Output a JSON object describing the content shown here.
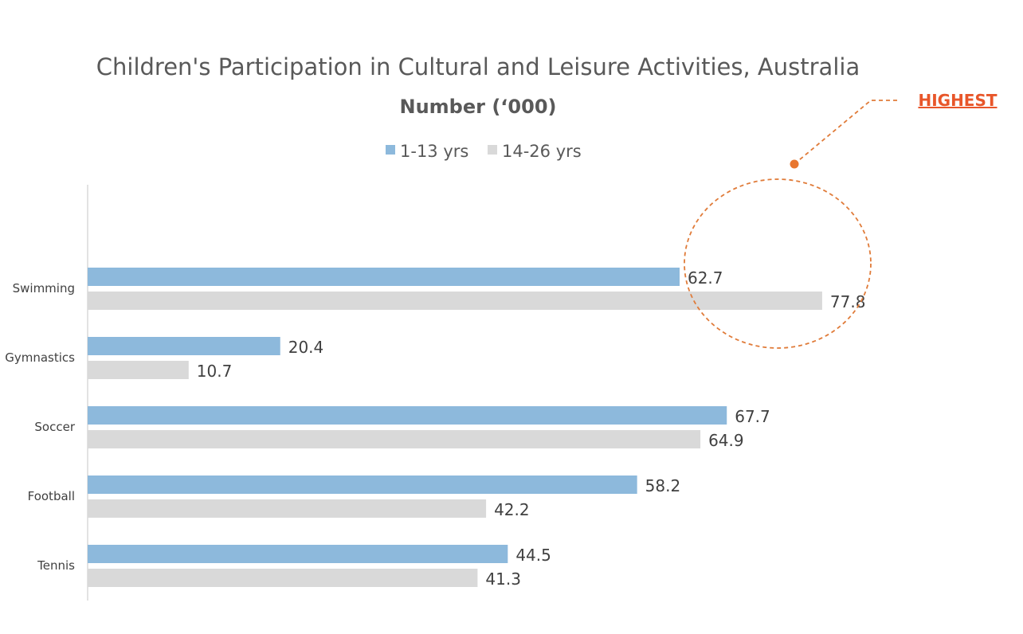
{
  "chart_data": {
    "type": "bar",
    "orientation": "horizontal",
    "title": "Children's Participation in Cultural and Leisure Activities, Australia",
    "subtitle": "Number (‘000)",
    "categories": [
      "Swimming",
      "Gymnastics",
      "Soccer",
      "Football",
      "Tennis"
    ],
    "series": [
      {
        "name": "1-13 yrs",
        "color": "#8DB9DC",
        "values": [
          62.7,
          20.4,
          67.7,
          58.2,
          44.5
        ]
      },
      {
        "name": "14-26 yrs",
        "color": "#D9D9D9",
        "values": [
          77.8,
          10.7,
          64.9,
          42.2,
          41.3
        ]
      }
    ],
    "xlim": [
      0,
      100
    ],
    "grid": false,
    "legend_position": "top",
    "annotation": {
      "text": "HIGHEST",
      "target": "Swimming",
      "color": "#E8562A"
    }
  }
}
